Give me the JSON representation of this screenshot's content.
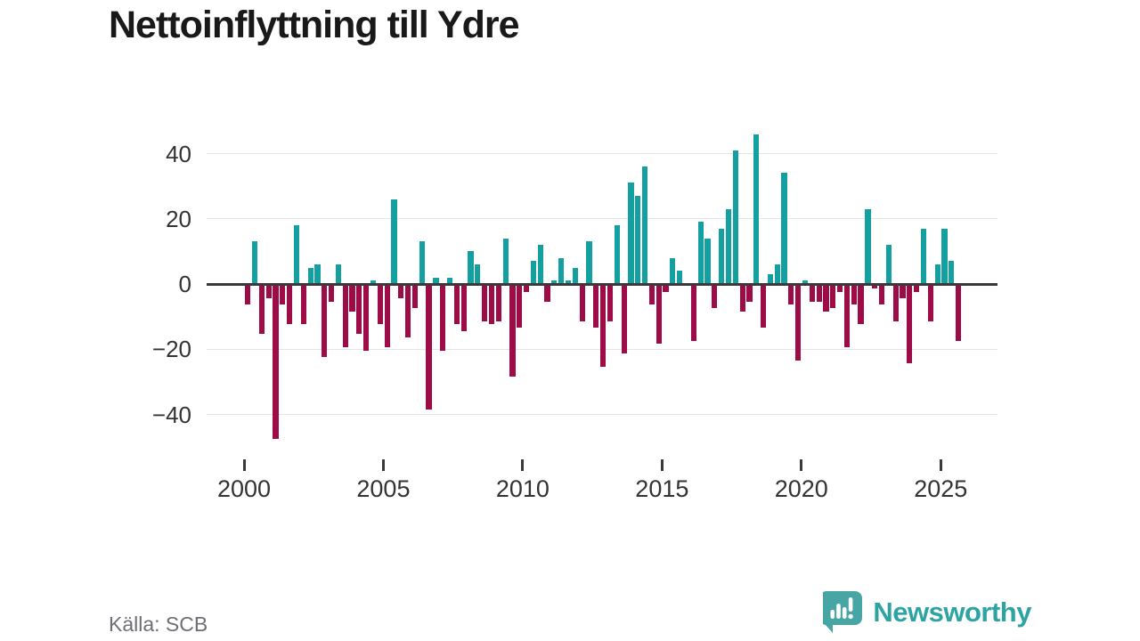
{
  "title": "Nettoinflyttning till Ydre",
  "source": {
    "text": "Källa: SCB"
  },
  "brand": {
    "name": "Newsworthy"
  },
  "colors": {
    "positive": "#14a0a0",
    "negative": "#9e0c48",
    "grid": "#e4e4e4",
    "zero_line": "#3a3a3a",
    "axis_text": "#333333",
    "source_text": "#6e6e78",
    "brand_teal": "#2ea3a4",
    "brand_bubble": "#47a5a4"
  },
  "chart_data": {
    "type": "bar",
    "title": "Nettoinflyttning till Ydre",
    "xlabel": "",
    "ylabel": "",
    "start_year": 2000,
    "start_quarter": 1,
    "frequency": "quarterly",
    "ylim": [
      -50,
      50
    ],
    "grid": "horizontal",
    "y_ticks": [
      40,
      20,
      0,
      -20,
      -40
    ],
    "y_tick_labels": [
      "40",
      "20",
      "0",
      "−20",
      "−40"
    ],
    "x_tick_years": [
      2000,
      2005,
      2010,
      2015,
      2020,
      2025
    ],
    "x_tick_labels": [
      "2000",
      "2005",
      "2010",
      "2015",
      "2020",
      "2025"
    ],
    "series": [
      {
        "name": "Nettoinflyttning till Ydre",
        "values": [
          -6,
          13,
          -15,
          -4,
          -47,
          -6,
          -12,
          18,
          -12,
          5,
          6,
          -22,
          -5,
          6,
          -19,
          -8,
          -15,
          -20,
          1,
          -12,
          -19,
          26,
          -4,
          -16,
          -7,
          13,
          -38,
          2,
          -20,
          2,
          -12,
          -14,
          10,
          6,
          -11,
          -12,
          -11,
          14,
          -28,
          -13,
          -2,
          7,
          12,
          -5,
          1,
          8,
          1,
          5,
          -11,
          13,
          -13,
          -25,
          -11,
          18,
          -21,
          31,
          27,
          36,
          -6,
          -18,
          -2,
          8,
          4,
          0,
          -17,
          19,
          14,
          -7,
          17,
          23,
          41,
          -8,
          -5,
          46,
          -13,
          3,
          6,
          34,
          -6,
          -23,
          1,
          -5,
          -5,
          -8,
          -7,
          -2,
          -19,
          -6,
          -12,
          23,
          -1,
          -6,
          12,
          -11,
          -4,
          -24,
          -2,
          17,
          -11,
          6,
          17,
          7,
          -17
        ]
      }
    ]
  }
}
